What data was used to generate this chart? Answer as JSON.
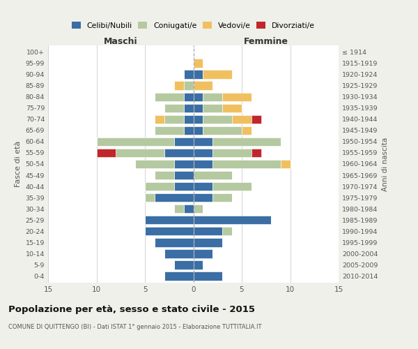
{
  "age_groups": [
    "0-4",
    "5-9",
    "10-14",
    "15-19",
    "20-24",
    "25-29",
    "30-34",
    "35-39",
    "40-44",
    "45-49",
    "50-54",
    "55-59",
    "60-64",
    "65-69",
    "70-74",
    "75-79",
    "80-84",
    "85-89",
    "90-94",
    "95-99",
    "100+"
  ],
  "birth_years": [
    "2010-2014",
    "2005-2009",
    "2000-2004",
    "1995-1999",
    "1990-1994",
    "1985-1989",
    "1980-1984",
    "1975-1979",
    "1970-1974",
    "1965-1969",
    "1960-1964",
    "1955-1959",
    "1950-1954",
    "1945-1949",
    "1940-1944",
    "1935-1939",
    "1930-1934",
    "1925-1929",
    "1920-1924",
    "1915-1919",
    "≤ 1914"
  ],
  "colors": {
    "celibi": "#3a6ea5",
    "coniugati": "#b5c9a0",
    "vedovi": "#f0c060",
    "divorziati": "#c0272d"
  },
  "males": {
    "celibi": [
      3,
      2,
      3,
      4,
      5,
      5,
      1,
      4,
      2,
      2,
      2,
      3,
      2,
      1,
      1,
      1,
      1,
      0,
      1,
      0,
      0
    ],
    "coniugati": [
      0,
      0,
      0,
      0,
      0,
      0,
      1,
      1,
      3,
      2,
      4,
      5,
      8,
      3,
      2,
      2,
      3,
      1,
      0,
      0,
      0
    ],
    "vedovi": [
      0,
      0,
      0,
      0,
      0,
      0,
      0,
      0,
      0,
      0,
      0,
      0,
      0,
      0,
      1,
      0,
      0,
      1,
      0,
      0,
      0
    ],
    "divorziati": [
      0,
      0,
      0,
      0,
      0,
      0,
      0,
      0,
      0,
      0,
      0,
      2,
      0,
      0,
      0,
      0,
      0,
      0,
      0,
      0,
      0
    ]
  },
  "females": {
    "celibi": [
      3,
      1,
      2,
      3,
      3,
      8,
      0,
      2,
      2,
      0,
      2,
      2,
      2,
      1,
      1,
      1,
      1,
      0,
      1,
      0,
      0
    ],
    "coniugati": [
      0,
      0,
      0,
      0,
      1,
      0,
      1,
      2,
      4,
      4,
      7,
      4,
      7,
      4,
      3,
      2,
      2,
      0,
      0,
      0,
      0
    ],
    "vedovi": [
      0,
      0,
      0,
      0,
      0,
      0,
      0,
      0,
      0,
      0,
      1,
      0,
      0,
      1,
      2,
      2,
      3,
      2,
      3,
      1,
      0
    ],
    "divorziati": [
      0,
      0,
      0,
      0,
      0,
      0,
      0,
      0,
      0,
      0,
      0,
      1,
      0,
      0,
      1,
      0,
      0,
      0,
      0,
      0,
      0
    ]
  },
  "xlim": 15,
  "title": "Popolazione per età, sesso e stato civile - 2015",
  "subtitle": "COMUNE DI QUITTENGO (BI) - Dati ISTAT 1° gennaio 2015 - Elaborazione TUTTITALIA.IT",
  "ylabel": "Fasce di età",
  "ylabel_right": "Anni di nascita",
  "xlabel_left": "Maschi",
  "xlabel_right": "Femmine",
  "legend_labels": [
    "Celibi/Nubili",
    "Coniugati/e",
    "Vedovi/e",
    "Divorziati/e"
  ],
  "background_color": "#f0f0eb",
  "plot_bg_color": "#ffffff"
}
